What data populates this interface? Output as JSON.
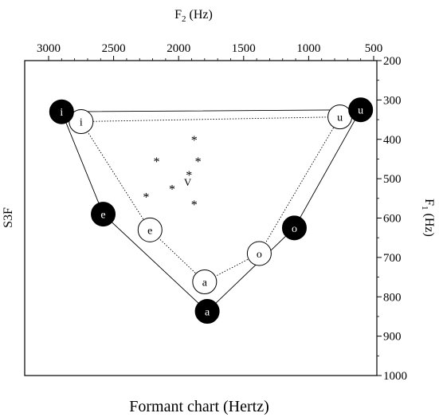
{
  "chart_data": {
    "type": "scatter",
    "title": "",
    "caption": "Formant chart (Hertz)",
    "left_label": "S3F",
    "x_axis": {
      "label_main": "F",
      "label_sub": "2",
      "label_unit": " (Hz)",
      "range": [
        3000,
        500
      ],
      "ticks": [
        3000,
        2500,
        2000,
        1500,
        1000,
        500
      ],
      "position": "top",
      "reversed": true
    },
    "y_axis": {
      "label_main": "F",
      "label_sub": "1",
      "label_unit": " (Hz)",
      "range": [
        200,
        1000
      ],
      "ticks": [
        200,
        300,
        400,
        500,
        600,
        700,
        800,
        900,
        1000
      ],
      "position": "right",
      "reversed": true
    },
    "grid": false,
    "series": [
      {
        "style": "filled-circle",
        "outline": "solid",
        "color": "#000000",
        "points": [
          {
            "label": "i",
            "f2": 2900,
            "f1": 330
          },
          {
            "label": "e",
            "f2": 2580,
            "f1": 590
          },
          {
            "label": "a",
            "f2": 1780,
            "f1": 837
          },
          {
            "label": "o",
            "f2": 1110,
            "f1": 625
          },
          {
            "label": "u",
            "f2": 600,
            "f1": 325
          }
        ]
      },
      {
        "style": "open-circle",
        "outline": "dotted",
        "color": "#000000",
        "points": [
          {
            "label": "i",
            "f2": 2750,
            "f1": 355
          },
          {
            "label": "e",
            "f2": 2220,
            "f1": 630
          },
          {
            "label": "a",
            "f2": 1800,
            "f1": 762
          },
          {
            "label": "o",
            "f2": 1380,
            "f1": 690
          },
          {
            "label": "u",
            "f2": 760,
            "f1": 343
          }
        ]
      },
      {
        "style": "asterisk",
        "color": "#000000",
        "points": [
          {
            "f2": 1880,
            "f1": 400
          },
          {
            "f2": 2170,
            "f1": 455
          },
          {
            "f2": 1850,
            "f1": 455
          },
          {
            "f2": 1920,
            "f1": 490
          },
          {
            "f2": 2050,
            "f1": 525
          },
          {
            "f2": 2250,
            "f1": 545
          },
          {
            "f2": 1880,
            "f1": 565
          }
        ],
        "annotation": {
          "text": "V",
          "f2": 1930,
          "f1": 508
        }
      }
    ]
  }
}
